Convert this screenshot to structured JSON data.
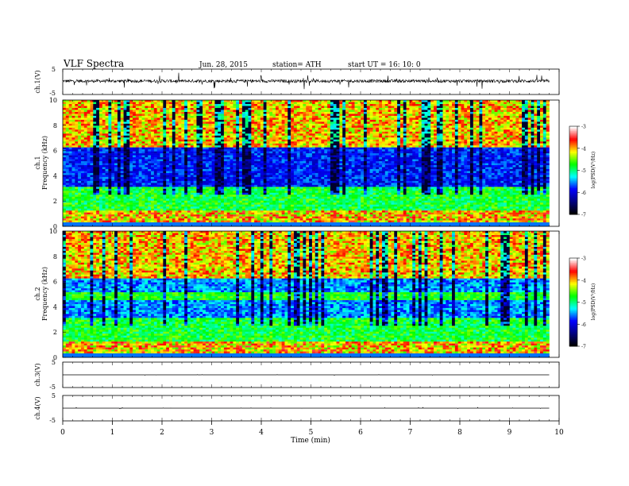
{
  "header": {
    "title": "VLF  Spectra",
    "date": "Jun. 28, 2015",
    "station": "station= ATH",
    "start_ut": "start  UT =    16: 10: 0"
  },
  "chart_data": [
    {
      "type": "line",
      "panel": "ch1-waveform",
      "ylabel": "ch.1(V)",
      "ylim": [
        -5,
        5
      ],
      "yticks": [
        "5",
        "-5"
      ],
      "x_range": [
        0,
        9.8
      ],
      "baseline": 0.3,
      "noise_amplitude": 0.6
    },
    {
      "type": "heatmap",
      "panel": "ch1-spectrogram",
      "ylabel": "Frequency  (kHz)",
      "channel_label": "ch.1",
      "ylim": [
        0,
        10
      ],
      "yticks": [
        "0",
        "2",
        "4",
        "6",
        "8",
        "10"
      ],
      "x_range": [
        0,
        9.8
      ],
      "colorbar": {
        "label": "log(PSD(V²/Hz)",
        "range": [
          -7,
          -3
        ],
        "ticks": [
          "-3",
          "-4",
          "-5",
          "-6",
          "-7"
        ]
      }
    },
    {
      "type": "heatmap",
      "panel": "ch2-spectrogram",
      "ylabel": "Frequency  (kHz)",
      "channel_label": "ch.2",
      "ylim": [
        0,
        10
      ],
      "yticks": [
        "0",
        "2",
        "4",
        "6",
        "8",
        "10"
      ],
      "x_range": [
        0,
        9.8
      ],
      "colorbar": {
        "label": "log(PSD(V²/Hz)",
        "range": [
          -7,
          -3
        ],
        "ticks": [
          "-3",
          "-4",
          "-5",
          "-6",
          "-7"
        ]
      }
    },
    {
      "type": "line",
      "panel": "ch3-waveform",
      "ylabel": "ch.3(V)",
      "ylim": [
        -5,
        5
      ],
      "yticks": [
        "5",
        "-5"
      ],
      "x_range": [
        0,
        9.8
      ],
      "baseline": 0.0
    },
    {
      "type": "line",
      "panel": "ch4-waveform",
      "ylabel": "ch.4(V)",
      "ylim": [
        -5,
        5
      ],
      "yticks": [
        "5",
        "-5"
      ],
      "x_range": [
        0,
        9.8
      ],
      "baseline": 0.0
    }
  ],
  "x_axis": {
    "label": "Time  (min)",
    "range": [
      0,
      10
    ],
    "ticks": [
      "0",
      "1",
      "2",
      "3",
      "4",
      "5",
      "6",
      "7",
      "8",
      "9",
      "10"
    ]
  },
  "colors": {
    "trace": "#000000",
    "colormap": [
      "#000000",
      "#000080",
      "#0000ff",
      "#00ffff",
      "#00ff00",
      "#ffff00",
      "#ff0000",
      "#ffffff"
    ]
  }
}
